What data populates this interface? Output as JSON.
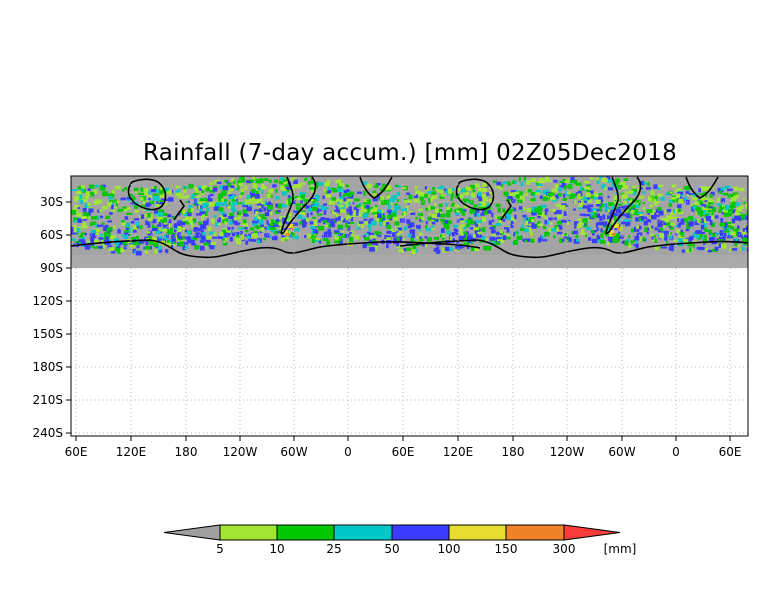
{
  "title": "Rainfall (7-day accum.) [mm] 02Z05Dec2018",
  "y_tick_labels": [
    "30S",
    "60S",
    "90S",
    "120S",
    "150S",
    "180S",
    "210S",
    "240S"
  ],
  "x_tick_labels": [
    "60E",
    "120E",
    "180",
    "120W",
    "60W",
    "0",
    "60E",
    "120E",
    "180",
    "120W",
    "60W",
    "0",
    "60E"
  ],
  "colorbar": {
    "labels": [
      "5",
      "10",
      "25",
      "50",
      "100",
      "150",
      "300"
    ],
    "unit": "[mm]",
    "colors": {
      "below": "#a0a0a0",
      "5-10": "#a0e632",
      "10-25": "#00c800",
      "25-50": "#00c8c8",
      "50-100": "#3c3cff",
      "100-150": "#e6dc32",
      "150-300": "#f08228",
      "above": "#fa3c3c"
    }
  },
  "map": {
    "land_color": "#b4b4b4",
    "no_data_color": "#aaaaaa",
    "grid": "dotted"
  }
}
